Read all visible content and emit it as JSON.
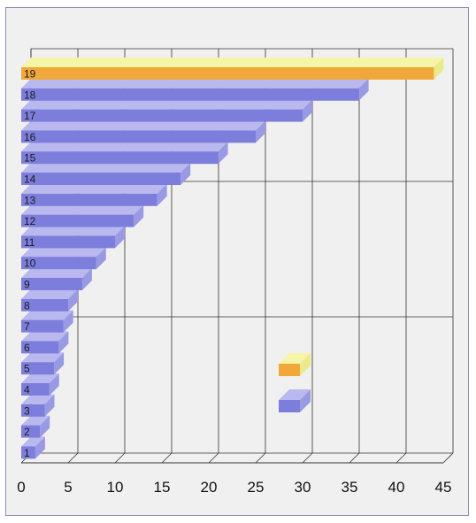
{
  "chart_data": {
    "type": "bar",
    "orientation": "horizontal",
    "style": "3d",
    "title": "",
    "xlabel": "",
    "ylabel": "",
    "xlim": [
      0,
      45
    ],
    "x_ticks": [
      0,
      5,
      10,
      15,
      20,
      25,
      30,
      35,
      40,
      45
    ],
    "grid": true,
    "legend": "right, two color swatches without text",
    "categories": [
      "1",
      "2",
      "3",
      "4",
      "5",
      "6",
      "7",
      "8",
      "9",
      "10",
      "11",
      "12",
      "13",
      "14",
      "15",
      "16",
      "17",
      "18",
      "19"
    ],
    "values": [
      1.5,
      2,
      2.5,
      3,
      3.5,
      4,
      4.5,
      5,
      6.5,
      8,
      10,
      12,
      14.5,
      17,
      21,
      25,
      30,
      36,
      44
    ],
    "highlight_index": 18,
    "colors": {
      "bar": "#7d7ddc",
      "bar_top": "#b9b9f0",
      "bar_side": "#9a9ae4",
      "highlight": "#f0a83a",
      "highlight_top": "#f5f5a8",
      "highlight_side": "#eaea8a",
      "grid": "#333333",
      "background": "#f0f0f0"
    }
  }
}
